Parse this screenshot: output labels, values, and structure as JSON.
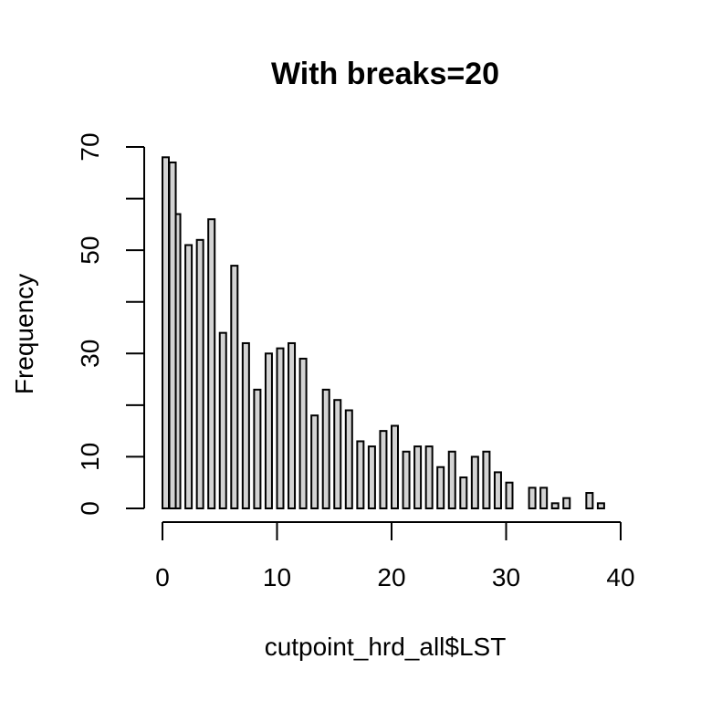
{
  "chart_data": {
    "type": "bar",
    "title": "With breaks=20",
    "xlabel": "cutpoint_hrd_all$LST",
    "ylabel": "Frequency",
    "xlim": [
      0,
      40
    ],
    "ylim": [
      0,
      70
    ],
    "x_ticks": [
      0,
      10,
      20,
      30,
      40
    ],
    "y_ticks": [
      0,
      10,
      30,
      50,
      70
    ],
    "y_minor_ticks": [
      20,
      40,
      60
    ],
    "bar_fill": "#d3d3d3",
    "bar_stroke": "#000000",
    "bars": [
      {
        "x": 0,
        "value": 68
      },
      {
        "x": 1,
        "value": 57
      },
      {
        "x": 2,
        "value": 51
      },
      {
        "x": 3,
        "value": 52
      },
      {
        "x": 4,
        "value": 56
      },
      {
        "x": 5,
        "value": 34
      },
      {
        "x": 6,
        "value": 47
      },
      {
        "x": 7,
        "value": 32
      },
      {
        "x": 8,
        "value": 23
      },
      {
        "x": 9,
        "value": 30
      },
      {
        "x": 10,
        "value": 31
      },
      {
        "x": 11,
        "value": 32
      },
      {
        "x": 12,
        "value": 29
      },
      {
        "x": 13,
        "value": 18
      },
      {
        "x": 14,
        "value": 23
      },
      {
        "x": 15,
        "value": 21
      },
      {
        "x": 16,
        "value": 19
      },
      {
        "x": 17,
        "value": 13
      },
      {
        "x": 18,
        "value": 12
      },
      {
        "x": 19,
        "value": 15
      },
      {
        "x": 20,
        "value": 16
      },
      {
        "x": 21,
        "value": 11
      },
      {
        "x": 22,
        "value": 12
      },
      {
        "x": 23,
        "value": 12
      },
      {
        "x": 24,
        "value": 8
      },
      {
        "x": 25,
        "value": 11
      },
      {
        "x": 26,
        "value": 6
      },
      {
        "x": 27,
        "value": 10
      },
      {
        "x": 28,
        "value": 11
      },
      {
        "x": 29,
        "value": 7
      },
      {
        "x": 30,
        "value": 5
      },
      {
        "x": 32,
        "value": 4
      },
      {
        "x": 33,
        "value": 4
      },
      {
        "x": 34,
        "value": 1
      },
      {
        "x": 35,
        "value": 2
      },
      {
        "x": 37,
        "value": 3
      },
      {
        "x": 38,
        "value": 1
      }
    ],
    "extra_bars": [
      {
        "x": 0.6,
        "value": 67
      }
    ]
  }
}
